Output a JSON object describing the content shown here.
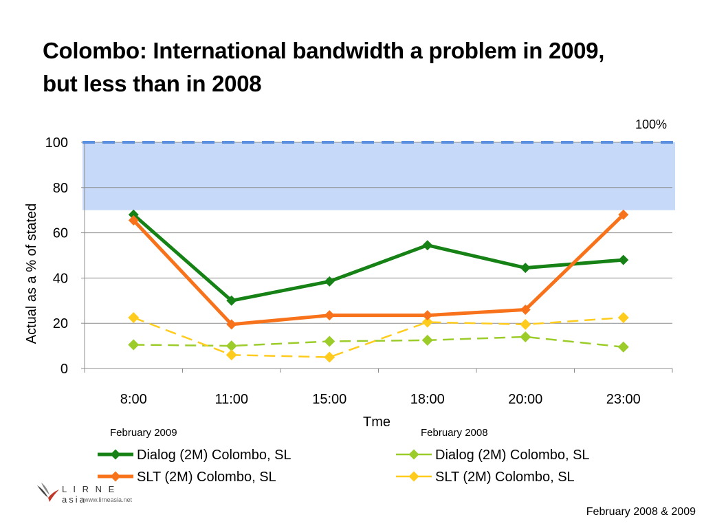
{
  "title_line1": "Colombo:  International bandwidth a problem in 2009,",
  "title_line2": "but less than in 2008",
  "footnote": "February 2008 & 2009",
  "logo": {
    "text": "L I R N E asia",
    "url": "www.lirneasia.net"
  },
  "chart_data": {
    "type": "line",
    "title": "",
    "xlabel": "Tme",
    "ylabel": "Actual as a % of stated",
    "categories": [
      "8:00",
      "11:00",
      "15:00",
      "18:00",
      "20:00",
      "23:00"
    ],
    "ylim": [
      0,
      100
    ],
    "yticks": [
      0,
      20,
      40,
      60,
      80,
      100
    ],
    "grid": true,
    "reference_line": {
      "value": 100,
      "label": "100%",
      "style": "dashed",
      "color": "#5b8fe0"
    },
    "shaded_band": {
      "from": 70,
      "to": 100,
      "color": "#c6d9f8"
    },
    "legend_groups": [
      "February 2009",
      "February 2008"
    ],
    "series": [
      {
        "name": "Dialog (2M) Colombo, SL",
        "group": "February 2009",
        "color": "#168216",
        "dashed": false,
        "values": [
          68,
          30,
          38.5,
          54.5,
          44.5,
          48
        ]
      },
      {
        "name": "SLT (2M) Colombo, SL",
        "group": "February 2009",
        "color": "#f7721a",
        "dashed": false,
        "values": [
          65.5,
          19.5,
          23.5,
          23.5,
          26,
          68
        ]
      },
      {
        "name": "Dialog (2M) Colombo, SL",
        "group": "February 2008",
        "color": "#9ccc2a",
        "dashed": true,
        "values": [
          10.5,
          10,
          12,
          12.5,
          14,
          9.5
        ]
      },
      {
        "name": "SLT (2M) Colombo, SL",
        "group": "February 2008",
        "color": "#ffcc1e",
        "dashed": true,
        "values": [
          22.5,
          6,
          5,
          20.5,
          19.5,
          22.5
        ]
      }
    ]
  }
}
